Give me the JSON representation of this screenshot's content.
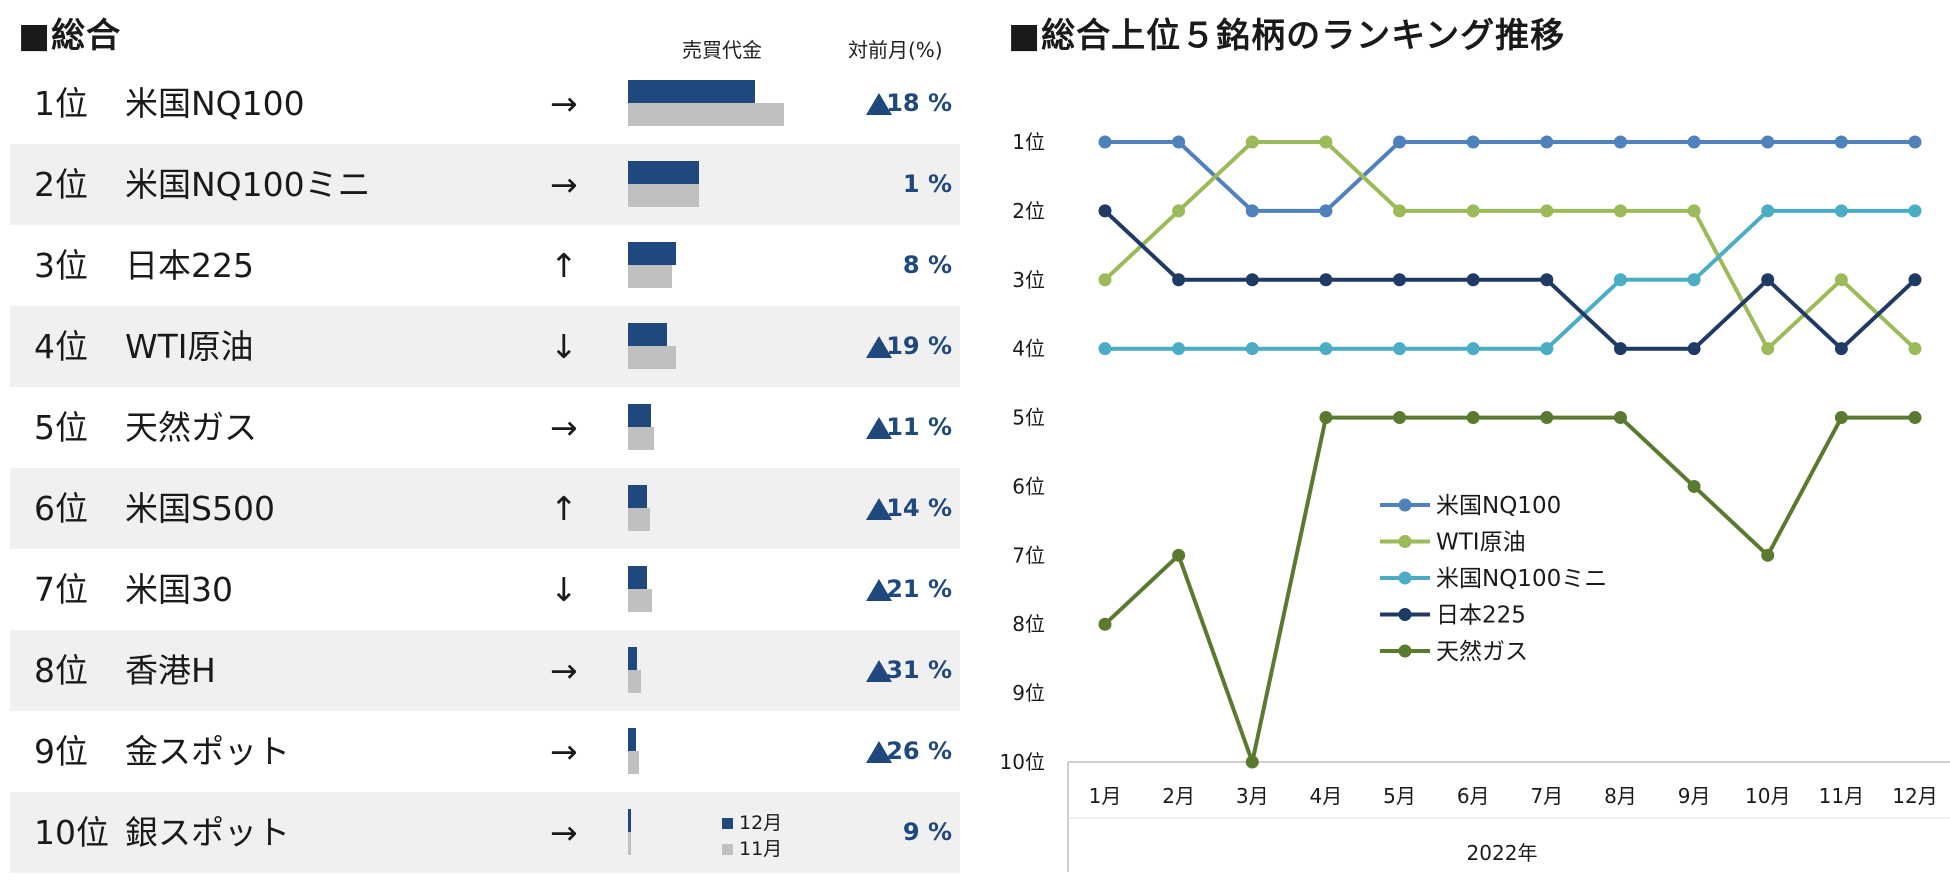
{
  "left": {
    "title": "■総合",
    "col_sales": "売買代金",
    "col_mom": "対前月(%)",
    "mini_legend": {
      "dec": "12月",
      "nov": "11月",
      "dec_color": "#1f497d",
      "nov_color": "#c0c0c0"
    },
    "rows": [
      {
        "rank": "1位",
        "name": "米国NQ100",
        "arrow": "→",
        "dec": 127,
        "nov": 156,
        "mom": "18 %",
        "up": true
      },
      {
        "rank": "2位",
        "name": "米国NQ100ミニ",
        "arrow": "→",
        "dec": 71,
        "nov": 71,
        "mom": "1 %",
        "up": false
      },
      {
        "rank": "3位",
        "name": "日本225",
        "arrow": "↑",
        "dec": 48,
        "nov": 44,
        "mom": "8 %",
        "up": false
      },
      {
        "rank": "4位",
        "name": "WTI原油",
        "arrow": "↓",
        "dec": 39,
        "nov": 48,
        "mom": "19 %",
        "up": true
      },
      {
        "rank": "5位",
        "name": "天然ガス",
        "arrow": "→",
        "dec": 23,
        "nov": 26,
        "mom": "11 %",
        "up": true
      },
      {
        "rank": "6位",
        "name": "米国S500",
        "arrow": "↑",
        "dec": 19,
        "nov": 22,
        "mom": "14 %",
        "up": true
      },
      {
        "rank": "7位",
        "name": "米国30",
        "arrow": "↓",
        "dec": 19,
        "nov": 24,
        "mom": "21 %",
        "up": true
      },
      {
        "rank": "8位",
        "name": "香港H",
        "arrow": "→",
        "dec": 9,
        "nov": 13,
        "mom": "31 %",
        "up": true
      },
      {
        "rank": "9位",
        "name": "金スポット",
        "arrow": "→",
        "dec": 8,
        "nov": 11,
        "mom": "26 %",
        "up": true
      },
      {
        "rank": "10位",
        "name": "銀スポット",
        "arrow": "→",
        "dec": 3,
        "nov": 3,
        "mom": "9 %",
        "up": false
      }
    ]
  },
  "chart_data": {
    "type": "line",
    "title": "■総合上位５銘柄のランキング推移",
    "categories": [
      "1月",
      "2月",
      "3月",
      "4月",
      "5月",
      "6月",
      "7月",
      "8月",
      "9月",
      "10月",
      "11月",
      "12月"
    ],
    "xlabel": "2022年",
    "y_ticks": [
      "1位",
      "2位",
      "3位",
      "4位",
      "5位",
      "6位",
      "7位",
      "8位",
      "9位",
      "10位"
    ],
    "ylim": [
      1,
      10
    ],
    "y_inverted": true,
    "legend_position": "center-left",
    "series": [
      {
        "name": "米国NQ100",
        "color": "#4f81bd",
        "values": [
          1,
          1,
          2,
          2,
          1,
          1,
          1,
          1,
          1,
          1,
          1,
          1
        ]
      },
      {
        "name": "WTI原油",
        "color": "#9bbb59",
        "values": [
          3,
          2,
          1,
          1,
          2,
          2,
          2,
          2,
          2,
          4,
          3,
          4
        ]
      },
      {
        "name": "米国NQ100ミニ",
        "color": "#4bacc6",
        "values": [
          4,
          4,
          4,
          4,
          4,
          4,
          4,
          3,
          3,
          2,
          2,
          2
        ]
      },
      {
        "name": "日本225",
        "color": "#1f3a64",
        "values": [
          2,
          3,
          3,
          3,
          3,
          3,
          3,
          4,
          4,
          3,
          4,
          3
        ]
      },
      {
        "name": "天然ガス",
        "color": "#5a7a30",
        "values": [
          8,
          7,
          10,
          5,
          5,
          5,
          5,
          5,
          6,
          7,
          5,
          5
        ]
      }
    ]
  }
}
